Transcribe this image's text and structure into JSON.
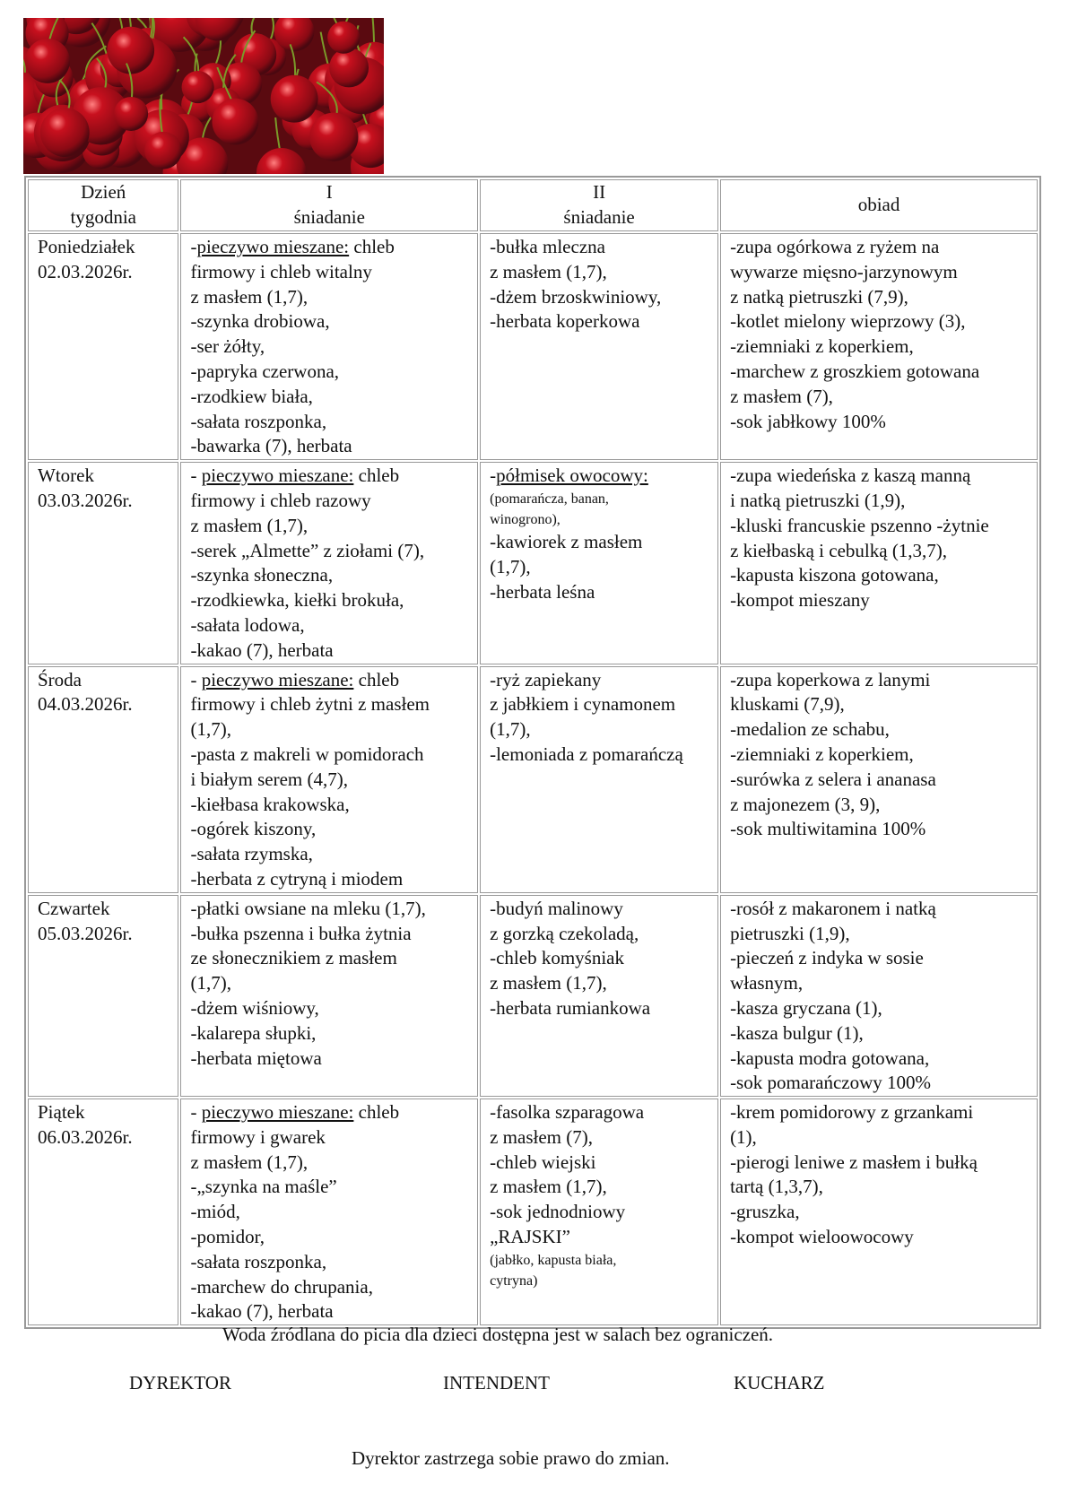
{
  "photo": {
    "subject": "cherries",
    "colors": [
      "#c8101e",
      "#8a0a14",
      "#4a0810",
      "#e83a3a",
      "#7a9a2a"
    ]
  },
  "table": {
    "headers": [
      {
        "line1": "Dzień",
        "line2": "tygodnia"
      },
      {
        "line1": "I",
        "line2": "śniadanie"
      },
      {
        "line1": "II",
        "line2": "śniadanie"
      },
      {
        "line1": "obiad",
        "line2": ""
      }
    ],
    "rows": [
      {
        "day": "Poniedziałek",
        "date": "02.03.2026r.",
        "breakfast1": [
          {
            "pre": "-",
            "u": "pieczywo mieszane:",
            "post": " chleb"
          },
          "firmowy i chleb witalny",
          "z masłem (1,7),",
          "-szynka drobiowa,",
          "-ser żółty,",
          "-papryka czerwona,",
          "-rzodkiew biała,",
          "-sałata roszponka,",
          "-bawarka (7), herbata"
        ],
        "breakfast2": [
          "-bułka mleczna",
          " z masłem (1,7),",
          "-dżem brzoskwiniowy,",
          "-herbata koperkowa"
        ],
        "lunch": [
          "-zupa ogórkowa z ryżem na",
          "wywarze mięsno-jarzynowym",
          " z natką pietruszki (7,9),",
          "-kotlet mielony wieprzowy (3),",
          "-ziemniaki z koperkiem,",
          "-marchew z groszkiem gotowana",
          " z masłem (7),",
          "-sok jabłkowy 100%"
        ]
      },
      {
        "day": "Wtorek",
        "date": "03.03.2026r.",
        "breakfast1": [
          {
            "pre": "- ",
            "u": "pieczywo mieszane:",
            "post": " chleb"
          },
          "firmowy i chleb razowy",
          "z masłem (1,7),",
          "-serek „Almette” z ziołami (7),",
          "-szynka słoneczna,",
          "-rzodkiewka, kiełki brokuła,",
          "-sałata lodowa,",
          "-kakao (7), herbata"
        ],
        "breakfast2": [
          {
            "pre": "-",
            "u": "półmisek owocowy:",
            "post": ""
          },
          {
            "small": "(pomarańcza, banan,"
          },
          {
            "small": "winogrono),"
          },
          "-kawiorek z masłem",
          "(1,7),",
          "-herbata leśna"
        ],
        "lunch": [
          "-zupa wiedeńska z kaszą manną",
          " i natką pietruszki (1,9),",
          "-kluski  francuskie pszenno -żytnie",
          "z kiełbaską i cebulką (1,3,7),",
          "-kapusta kiszona gotowana,",
          "-kompot mieszany"
        ]
      },
      {
        "day": "Środa",
        "date": "04.03.2026r.",
        "breakfast1": [
          {
            "pre": "- ",
            "u": "pieczywo mieszane:",
            "post": " chleb"
          },
          "firmowy i  chleb żytni z masłem",
          "(1,7),",
          "-pasta z makreli w pomidorach",
          "i białym serem (4,7),",
          "-kiełbasa krakowska,",
          "-ogórek kiszony,",
          "-sałata rzymska,",
          "-herbata z cytryną i miodem"
        ],
        "breakfast2": [
          "-ryż zapiekany",
          "z jabłkiem i cynamonem",
          "(1,7),",
          "-lemoniada z pomarańczą"
        ],
        "lunch": [
          "-zupa koperkowa z lanymi",
          "kluskami (7,9),",
          "-medalion ze schabu,",
          "-ziemniaki z koperkiem,",
          "-surówka z selera i ananasa",
          "z majonezem (3, 9),",
          "-sok multiwitamina 100%"
        ]
      },
      {
        "day": "Czwartek",
        "date": "05.03.2026r.",
        "breakfast1": [
          "-płatki owsiane na mleku (1,7),",
          "-bułka pszenna i  bułka żytnia",
          "ze słonecznikiem z masłem",
          "(1,7),",
          "-dżem wiśniowy,",
          "-kalarepa słupki,",
          "-herbata miętowa"
        ],
        "breakfast2": [
          "-budyń malinowy",
          "z gorzką czekoladą,",
          "-chleb komyśniak",
          "z masłem (1,7),",
          "-herbata rumiankowa"
        ],
        "lunch": [
          "-rosół z makaronem i natką",
          "pietruszki (1,9),",
          "-pieczeń z indyka w sosie",
          "własnym,",
          "-kasza gryczana (1),",
          "-kasza bulgur (1),",
          "-kapusta modra gotowana,",
          "-sok pomarańczowy 100%"
        ]
      },
      {
        "day": "Piątek",
        "date": "06.03.2026r.",
        "breakfast1": [
          {
            "pre": "- ",
            "u": "pieczywo mieszane:",
            "post": " chleb"
          },
          "firmowy i gwarek",
          "z masłem (1,7),",
          "-„szynka na maśle”",
          "-miód,",
          "-pomidor,",
          "-sałata roszponka,",
          "-marchew do chrupania,",
          "-kakao (7), herbata"
        ],
        "breakfast2": [
          "-fasolka szparagowa",
          "z masłem (7),",
          "-chleb wiejski",
          "z masłem (1,7),",
          "-sok jednodniowy",
          "„RAJSKI”",
          {
            "small": " (jabłko, kapusta biała,"
          },
          {
            "small": "cytryna)"
          }
        ],
        "lunch": [
          "-krem pomidorowy z grzankami",
          "(1),",
          "-pierogi leniwe  z masłem i bułką",
          "tartą (1,3,7),",
          "-gruszka,",
          "-kompot wieloowocowy"
        ]
      }
    ]
  },
  "footer": {
    "water_note": "Woda źródlana do picia dla dzieci dostępna jest w salach bez ograniczeń.",
    "signatures": [
      "DYREKTOR",
      "INTENDENT",
      "KUCHARZ"
    ],
    "disclaimer": "Dyrektor zastrzega sobie prawo do zmian."
  }
}
